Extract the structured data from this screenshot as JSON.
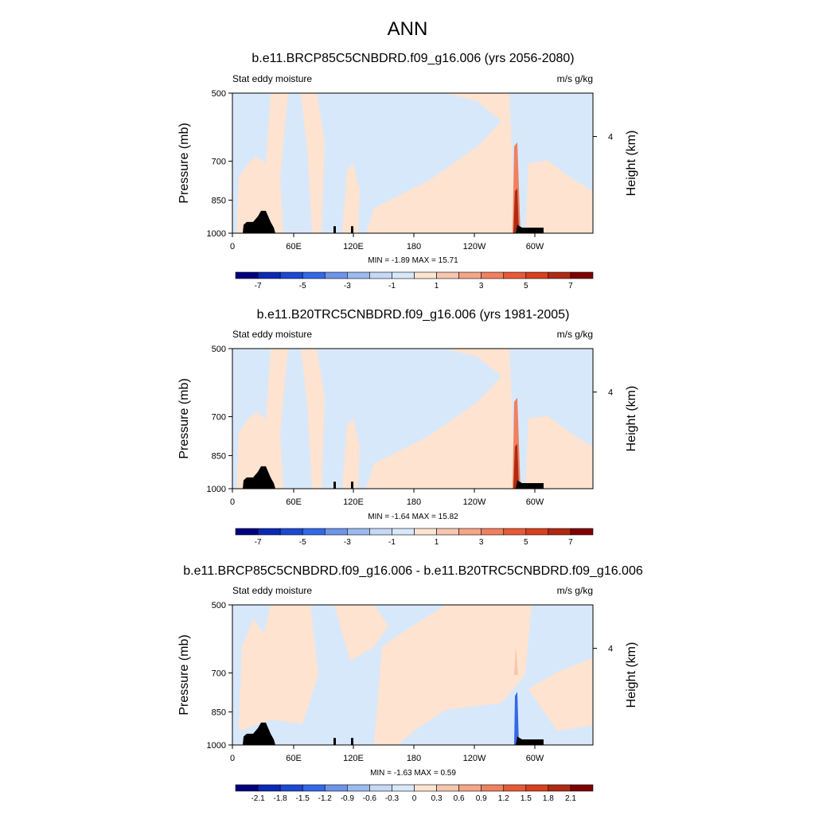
{
  "page_title": "ANN",
  "chart_data": [
    {
      "type": "heatmap",
      "title": "b.e11.BRCP85C5CNBDRD.f09_g16.006 (yrs 2056-2080)",
      "left_string": "Stat eddy moisture",
      "right_string": "m/s g/kg",
      "ylabel": "Pressure (mb)",
      "ylabel_right": "Height (km)",
      "y_ticks": [
        "500",
        "700",
        "850",
        "1000"
      ],
      "y_right_ticks": [
        "4"
      ],
      "x_ticks": [
        "0",
        "60E",
        "120E",
        "180",
        "120W",
        "60W"
      ],
      "stats": "MIN =  -1.89  MAX =  15.71",
      "colorbar_labels": [
        "-7",
        "-5",
        "-3",
        "-1",
        "1",
        "3",
        "5",
        "7"
      ],
      "colorbar_colors": [
        "#00007f",
        "#0a2ab5",
        "#1c48d4",
        "#3468e8",
        "#6d95ec",
        "#9bbaf0",
        "#c5d8f6",
        "#d8e8fb",
        "#fde3d0",
        "#f7c6ae",
        "#f4a686",
        "#f08060",
        "#e85a36",
        "#d8401e",
        "#b02a12",
        "#7f0000"
      ],
      "min": -1.89,
      "max": 15.71
    },
    {
      "type": "heatmap",
      "title": "b.e11.B20TRC5CNBDRD.f09_g16.006 (yrs 1981-2005)",
      "left_string": "Stat eddy moisture",
      "right_string": "m/s g/kg",
      "ylabel": "Pressure (mb)",
      "ylabel_right": "Height (km)",
      "y_ticks": [
        "500",
        "700",
        "850",
        "1000"
      ],
      "y_right_ticks": [
        "4"
      ],
      "x_ticks": [
        "0",
        "60E",
        "120E",
        "180",
        "120W",
        "60W"
      ],
      "stats": "MIN =  -1.64  MAX =  15.82",
      "colorbar_labels": [
        "-7",
        "-5",
        "-3",
        "-1",
        "1",
        "3",
        "5",
        "7"
      ],
      "colorbar_colors": [
        "#00007f",
        "#0a2ab5",
        "#1c48d4",
        "#3468e8",
        "#6d95ec",
        "#9bbaf0",
        "#c5d8f6",
        "#d8e8fb",
        "#fde3d0",
        "#f7c6ae",
        "#f4a686",
        "#f08060",
        "#e85a36",
        "#d8401e",
        "#b02a12",
        "#7f0000"
      ],
      "min": -1.64,
      "max": 15.82
    },
    {
      "type": "heatmap",
      "title": "b.e11.BRCP85C5CNBDRD.f09_g16.006 - b.e11.B20TRC5CNBDRD.f09_g16.006",
      "left_string": "Stat eddy moisture",
      "right_string": "m/s g/kg",
      "ylabel": "Pressure (mb)",
      "ylabel_right": "Height (km)",
      "y_ticks": [
        "500",
        "700",
        "850",
        "1000"
      ],
      "y_right_ticks": [
        "4"
      ],
      "x_ticks": [
        "0",
        "60E",
        "120E",
        "180",
        "120W",
        "60W"
      ],
      "stats": "MIN =  -1.63  MAX =   0.59",
      "colorbar_labels": [
        "-2.1",
        "-1.8",
        "-1.5",
        "-1.2",
        "-0.9",
        "-0.6",
        "-0.3",
        "0",
        "0.3",
        "0.6",
        "0.9",
        "1.2",
        "1.5",
        "1.8",
        "2.1"
      ],
      "colorbar_colors": [
        "#00007f",
        "#0a2ab5",
        "#1c48d4",
        "#3468e8",
        "#6d95ec",
        "#9bbaf0",
        "#c5d8f6",
        "#d8e8fb",
        "#fde3d0",
        "#f7c6ae",
        "#f4a686",
        "#f08060",
        "#e85a36",
        "#d8401e",
        "#b02a12",
        "#7f0000"
      ],
      "min": -1.63,
      "max": 0.59
    }
  ]
}
